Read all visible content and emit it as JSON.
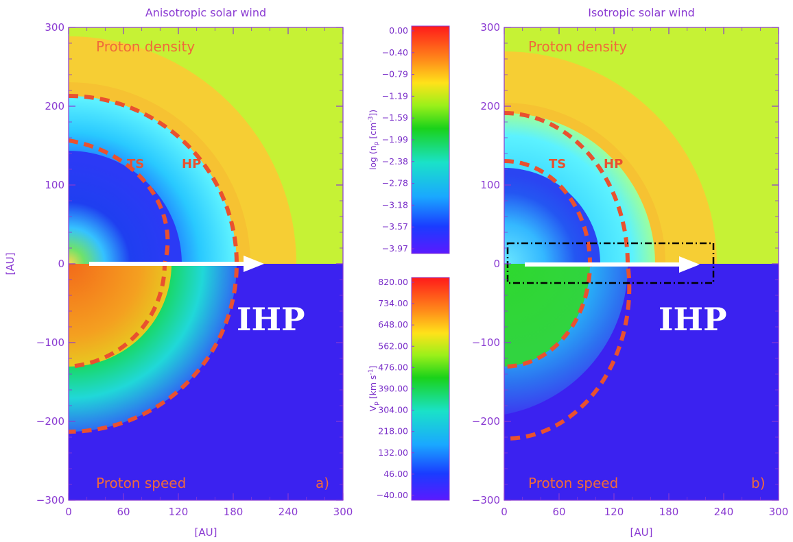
{
  "chart_data": [
    {
      "type": "heatmap",
      "title": "Anisotropic solar wind",
      "xlabel": "[AU]",
      "ylabel": "[AU]",
      "xlim": [
        0,
        300
      ],
      "ylim": [
        -300,
        300
      ],
      "xticks": [
        "0",
        "60",
        "120",
        "180",
        "240",
        "300"
      ],
      "yticks": [
        "300",
        "200",
        "100",
        "0",
        "-100",
        "-200",
        "-300"
      ],
      "upper_label": "Proton density",
      "lower_label": "Proton speed",
      "corner_label": "a)",
      "boundary_labels": [
        "TS",
        "HP"
      ],
      "arrow_label": "IHP",
      "boundaries": {
        "TS_radius_AU": 155,
        "HP_radius_AU": 245,
        "TS_lower_radius_AU": 150,
        "HP_lower_radius_AU": 245
      },
      "arrow": {
        "from_x": 20,
        "to_x": 215,
        "y": 0
      }
    },
    {
      "type": "heatmap",
      "title": "Isotropic solar wind",
      "xlabel": "[AU]",
      "ylabel": "",
      "xlim": [
        0,
        300
      ],
      "ylim": [
        -300,
        300
      ],
      "xticks": [
        "0",
        "60",
        "120",
        "180",
        "240",
        "300"
      ],
      "yticks": [
        "300",
        "200",
        "100",
        "0",
        "-100",
        "-200",
        "-300"
      ],
      "upper_label": "Proton density",
      "lower_label": "Proton speed",
      "corner_label": "b)",
      "boundary_labels": [
        "TS",
        "HP"
      ],
      "arrow_label": "IHP",
      "boundaries": {
        "TS_radius_AU": 130,
        "HP_radius_AU": 220,
        "TS_lower_radius_AU": 130,
        "HP_lower_radius_AU": 220
      },
      "arrow": {
        "from_x": 20,
        "to_x": 215,
        "y": 0
      },
      "highlight_box": {
        "x0": 5,
        "x1": 230,
        "y0": -25,
        "y1": 25
      }
    }
  ],
  "colorbars": [
    {
      "label": "log (n_p [cm^-3])",
      "ticks": [
        "0.00",
        "-0.40",
        "-0.79",
        "-1.19",
        "-1.59",
        "-1.99",
        "-2.38",
        "-2.78",
        "-3.18",
        "-3.57",
        "-3.97"
      ]
    },
    {
      "label": "V_p [km s^-1]",
      "ticks": [
        "820.00",
        "734.00",
        "648.00",
        "562.00",
        "476.00",
        "390.00",
        "304.00",
        "218.00",
        "132.00",
        "46.00",
        "-40.00"
      ]
    }
  ],
  "colors": {
    "axis": "#8a3ad2",
    "boundary": "#e9512f",
    "density_outer": "#c6f235",
    "density_sheath": "#f6c232",
    "speed_outer": "#3b22f0"
  }
}
